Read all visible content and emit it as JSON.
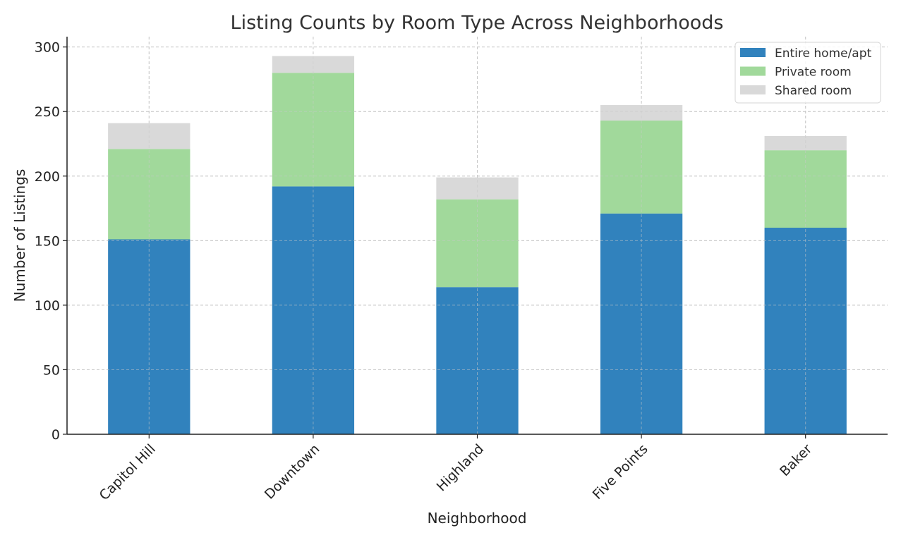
{
  "chart_data": {
    "type": "bar",
    "stacked": true,
    "title": "Listing Counts by Room Type Across Neighborhoods",
    "xlabel": "Neighborhood",
    "ylabel": "Number of Listings",
    "categories": [
      "Capitol Hill",
      "Downtown",
      "Highland",
      "Five Points",
      "Baker"
    ],
    "series": [
      {
        "name": "Entire home/apt",
        "color": "#3182bd",
        "values": [
          151,
          192,
          114,
          171,
          160
        ]
      },
      {
        "name": "Private room",
        "color": "#a1d99b",
        "values": [
          70,
          88,
          68,
          72,
          60
        ]
      },
      {
        "name": "Shared room",
        "color": "#d9d9d9",
        "values": [
          20,
          13,
          17,
          12,
          11
        ]
      }
    ],
    "ylim": [
      0,
      308
    ],
    "yticks": [
      0,
      50,
      100,
      150,
      200,
      250,
      300
    ],
    "grid": true,
    "legend_position": "top-right"
  }
}
